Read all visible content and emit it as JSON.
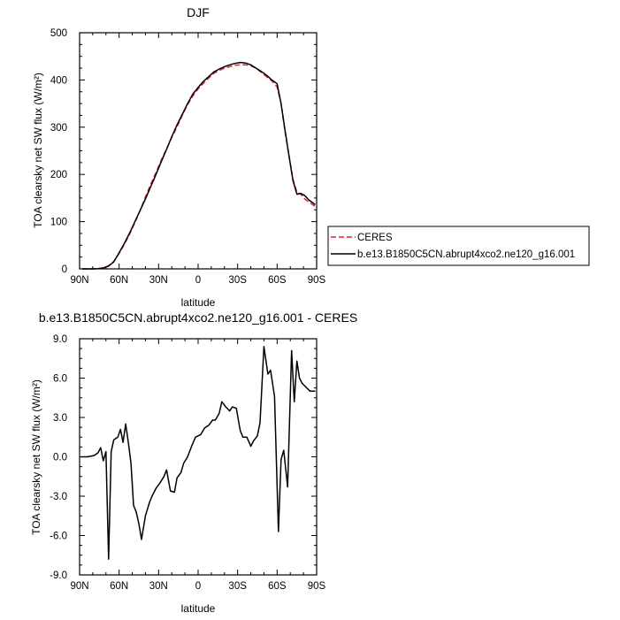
{
  "chart_data": [
    {
      "type": "line",
      "title": "DJF",
      "xlabel": "latitude",
      "ylabel": "TOA clearsky net SW flux (W/m²)",
      "xlim": [
        90,
        -90
      ],
      "ylim": [
        0,
        500
      ],
      "xticks": [
        90,
        60,
        30,
        0,
        -30,
        -60,
        -90
      ],
      "xtick_labels": [
        "90N",
        "60N",
        "30N",
        "0",
        "30S",
        "60S",
        "90S"
      ],
      "yticks": [
        0,
        100,
        200,
        300,
        400,
        500
      ],
      "ytick_labels": [
        "0",
        "100",
        "200",
        "300",
        "400",
        "500"
      ],
      "grid": false,
      "legend_position": "right, outside the plot",
      "series": [
        {
          "name": "CERES",
          "color": "#e8202a",
          "dash": "dashed",
          "x": [
            88,
            84,
            80,
            76,
            72,
            68,
            64,
            60,
            56,
            52,
            48,
            44,
            40,
            36,
            32,
            28,
            24,
            20,
            16,
            12,
            8,
            4,
            0,
            -4,
            -8,
            -12,
            -16,
            -20,
            -24,
            -28,
            -32,
            -36,
            -40,
            -44,
            -48,
            -52,
            -56,
            -60,
            -63,
            -66,
            -69,
            -72,
            -75,
            -78,
            -81,
            -84,
            -87,
            -89
          ],
          "y": [
            0,
            0,
            0,
            0.3,
            1.5,
            7,
            16,
            33,
            52,
            74,
            98,
            124,
            152,
            179,
            204,
            230,
            254,
            278,
            301,
            325,
            348,
            366,
            381,
            393,
            404,
            414,
            420,
            425,
            428,
            431,
            432,
            432,
            430,
            425,
            416,
            407,
            398,
            385,
            350,
            290,
            240,
            190,
            162,
            158,
            148,
            142,
            136,
            132
          ]
        },
        {
          "name": "b.e13.B1850C5CN.abrupt4xco2.ne120_g16.001",
          "color": "#000000",
          "dash": "solid",
          "x": [
            88,
            84,
            80,
            76,
            72,
            68,
            64,
            60,
            56,
            52,
            48,
            44,
            40,
            36,
            32,
            28,
            24,
            20,
            16,
            12,
            8,
            4,
            0,
            -4,
            -8,
            -12,
            -16,
            -20,
            -24,
            -28,
            -32,
            -36,
            -40,
            -44,
            -48,
            -52,
            -56,
            -60,
            -63,
            -66,
            -69,
            -72,
            -75,
            -78,
            -81,
            -84,
            -87,
            -89
          ],
          "y": [
            0,
            0,
            0,
            0.5,
            2,
            6,
            15,
            34,
            54,
            76,
            100,
            124,
            148,
            174,
            200,
            227,
            253,
            280,
            305,
            327,
            350,
            370,
            384,
            397,
            407,
            417,
            423,
            428,
            432,
            435,
            437,
            436,
            432,
            425,
            418,
            410,
            400,
            392,
            350,
            293,
            240,
            187,
            158,
            160,
            155,
            146,
            140,
            136
          ]
        }
      ]
    },
    {
      "type": "line",
      "title": "b.e13.B1850C5CN.abrupt4xco2.ne120_g16.001 - CERES",
      "xlabel": "latitude",
      "ylabel": "TOA clearsky net SW flux (W/m²)",
      "xlim": [
        90,
        -90
      ],
      "ylim": [
        -9,
        9
      ],
      "xticks": [
        90,
        60,
        30,
        0,
        -30,
        -60,
        -90
      ],
      "xtick_labels": [
        "90N",
        "60N",
        "30N",
        "0",
        "30S",
        "60S",
        "90S"
      ],
      "yticks": [
        -9,
        -6,
        -3,
        0,
        3,
        6,
        9
      ],
      "ytick_labels": [
        "-9.0",
        "-6.0",
        "-3.0",
        "0.0",
        "3.0",
        "6.0",
        "9.0"
      ],
      "grid": false,
      "series": [
        {
          "color": "#000000",
          "x": [
            89,
            84,
            79,
            76,
            74,
            72,
            70,
            68,
            66,
            64,
            61,
            59,
            57,
            55,
            53,
            51,
            49,
            47,
            45,
            43,
            40,
            37,
            35,
            32,
            29,
            26,
            24,
            21,
            18,
            16,
            13,
            11,
            8,
            5,
            2,
            0,
            -2,
            -5,
            -8,
            -11,
            -13,
            -16,
            -18,
            -21,
            -24,
            -26,
            -29,
            -32,
            -34,
            -37,
            -40,
            -42,
            -45,
            -47,
            -50,
            -53,
            -55,
            -58,
            -61,
            -63,
            -65,
            -68,
            -71,
            -73,
            -75,
            -77,
            -79,
            -81,
            -83,
            -85,
            -87,
            -89
          ],
          "y": [
            0,
            0,
            0.1,
            0.3,
            0.7,
            -0.3,
            0.4,
            -7.8,
            0.4,
            1.3,
            1.5,
            2.1,
            1.1,
            2.5,
            1.1,
            -0.5,
            -3.7,
            -4.2,
            -5.1,
            -6.3,
            -4.5,
            -3.5,
            -3.0,
            -2.4,
            -2.0,
            -1.5,
            -1.0,
            -2.6,
            -2.7,
            -1.6,
            -1.2,
            -0.5,
            0,
            0.8,
            1.5,
            1.6,
            1.7,
            2.2,
            2.4,
            2.8,
            2.8,
            3.3,
            4.2,
            3.8,
            3.5,
            3.8,
            3.7,
            2.0,
            1.5,
            1.5,
            0.8,
            1.2,
            1.6,
            2.6,
            8.4,
            6.3,
            6.6,
            4.6,
            -5.7,
            -0.2,
            0.5,
            -2.3,
            8.1,
            4.2,
            7.3,
            6.0,
            5.6,
            5.4,
            5.2,
            5.0,
            5.0,
            5.0
          ]
        }
      ]
    }
  ]
}
